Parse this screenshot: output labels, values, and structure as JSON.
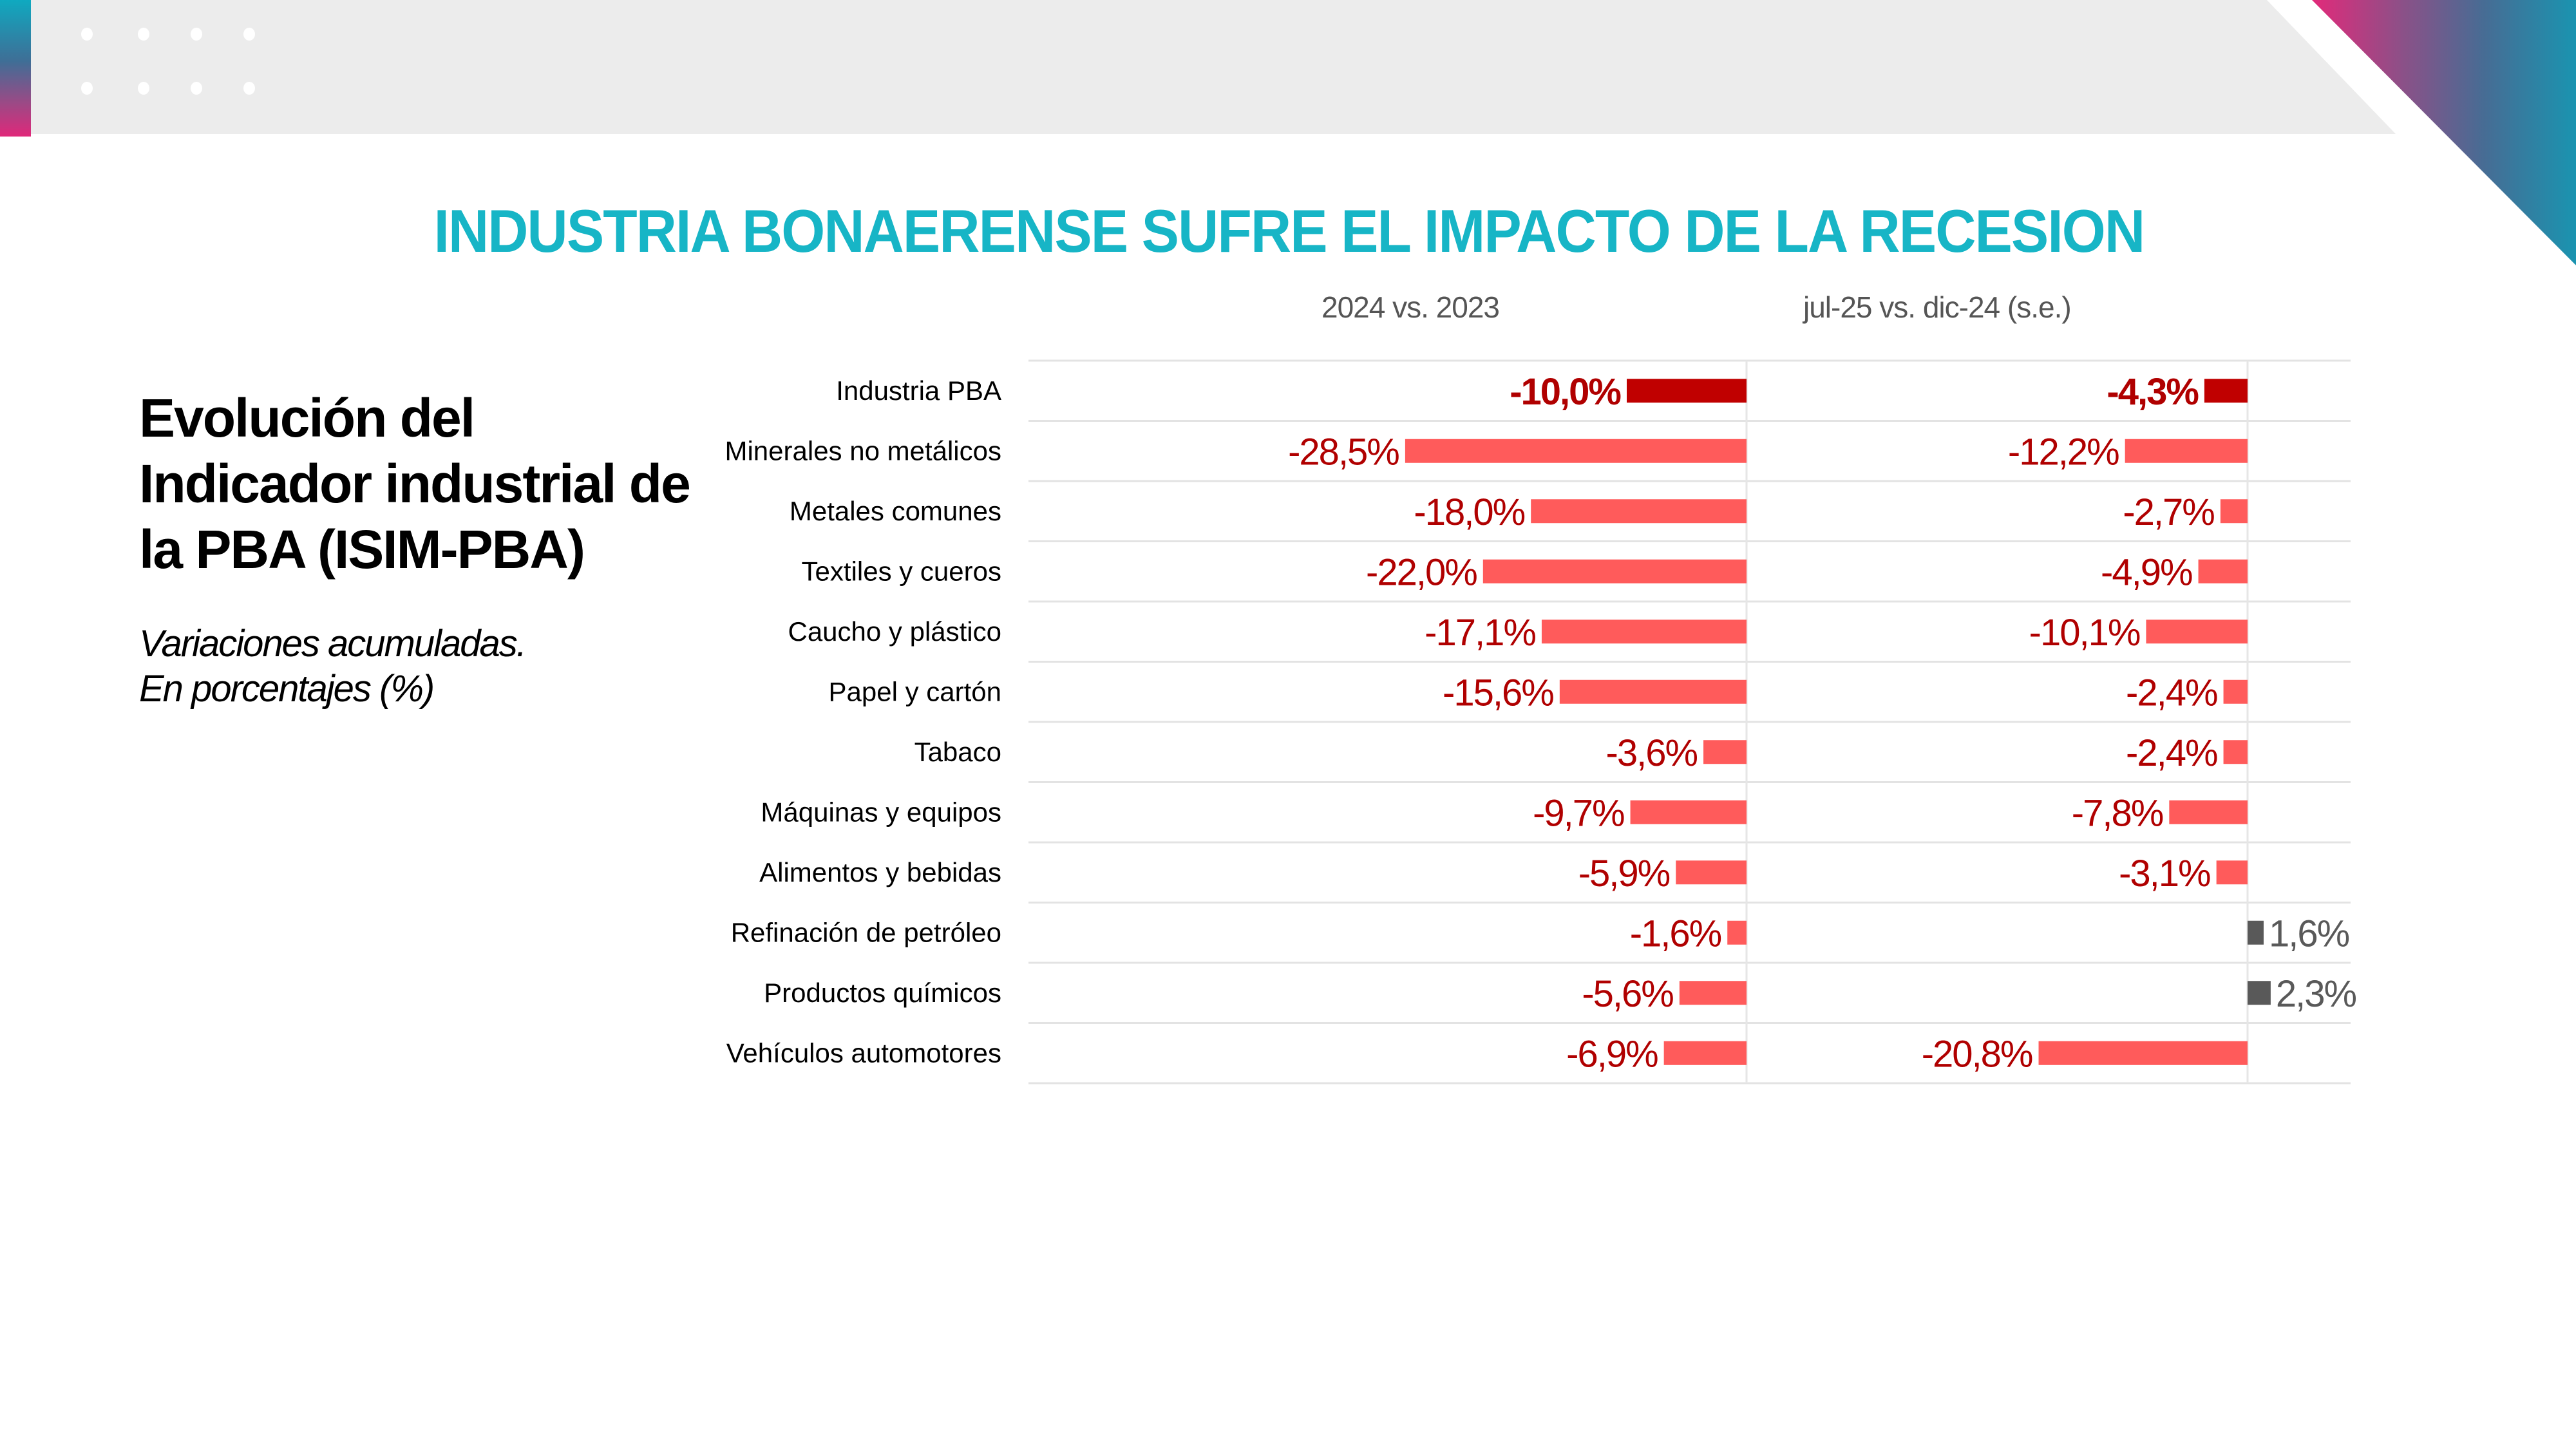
{
  "header": {
    "title": "INDUSTRIA BONAERENSE SUFRE EL IMPACTO DE LA RECESION"
  },
  "side_panel": {
    "title_lines": [
      "Evolución del",
      "Indicador industrial de",
      "la PBA (ISIM-PBA)"
    ],
    "subtitle_lines": [
      "Variaciones acumuladas.",
      "En porcentajes (%)"
    ]
  },
  "colors": {
    "title": "#17b5c6",
    "total_bar": "#c00000",
    "negative_bar": "#ff5b5b",
    "positive_bar": "#595959",
    "negative_label": "#b00000",
    "positive_label": "#595959"
  },
  "chart_data": {
    "type": "bar",
    "orientation": "horizontal",
    "title": "Evolución del Indicador industrial de la PBA (ISIM-PBA)",
    "subtitle": "Variaciones acumuladas. En porcentajes (%)",
    "unit": "%",
    "categories": [
      "Industria PBA",
      "Minerales no metálicos",
      "Metales comunes",
      "Textiles y cueros",
      "Caucho y plástico",
      "Papel y cartón",
      "Tabaco",
      "Máquinas y equipos",
      "Alimentos y bebidas",
      "Refinación de petróleo",
      "Productos químicos",
      "Vehículos automotores"
    ],
    "highlight_category": "Industria PBA",
    "series": [
      {
        "name": "2024 vs. 2023",
        "values": [
          -10.0,
          -28.5,
          -18.0,
          -22.0,
          -17.1,
          -15.6,
          -3.6,
          -9.7,
          -5.9,
          -1.6,
          -5.6,
          -6.9
        ],
        "labels": [
          "-10,0%",
          "-28,5%",
          "-18,0%",
          "-22,0%",
          "-17,1%",
          "-15,6%",
          "-3,6%",
          "-9,7%",
          "-5,9%",
          "-1,6%",
          "-5,6%",
          "-6,9%"
        ]
      },
      {
        "name": "jul-25 vs. dic-24 (s.e.)",
        "values": [
          -4.3,
          -12.2,
          -2.7,
          -4.9,
          -10.1,
          -2.4,
          -2.4,
          -7.8,
          -3.1,
          1.6,
          2.3,
          -20.8
        ],
        "labels": [
          "-4,3%",
          "-12,2%",
          "-2,7%",
          "-4,9%",
          "-10,1%",
          "-2,4%",
          "-2,4%",
          "-7,8%",
          "-3,1%",
          "1,6%",
          "2,3%",
          "-20,8%"
        ]
      }
    ],
    "grid": "horizontal row separators",
    "legend": "none (column headers above each panel)"
  }
}
